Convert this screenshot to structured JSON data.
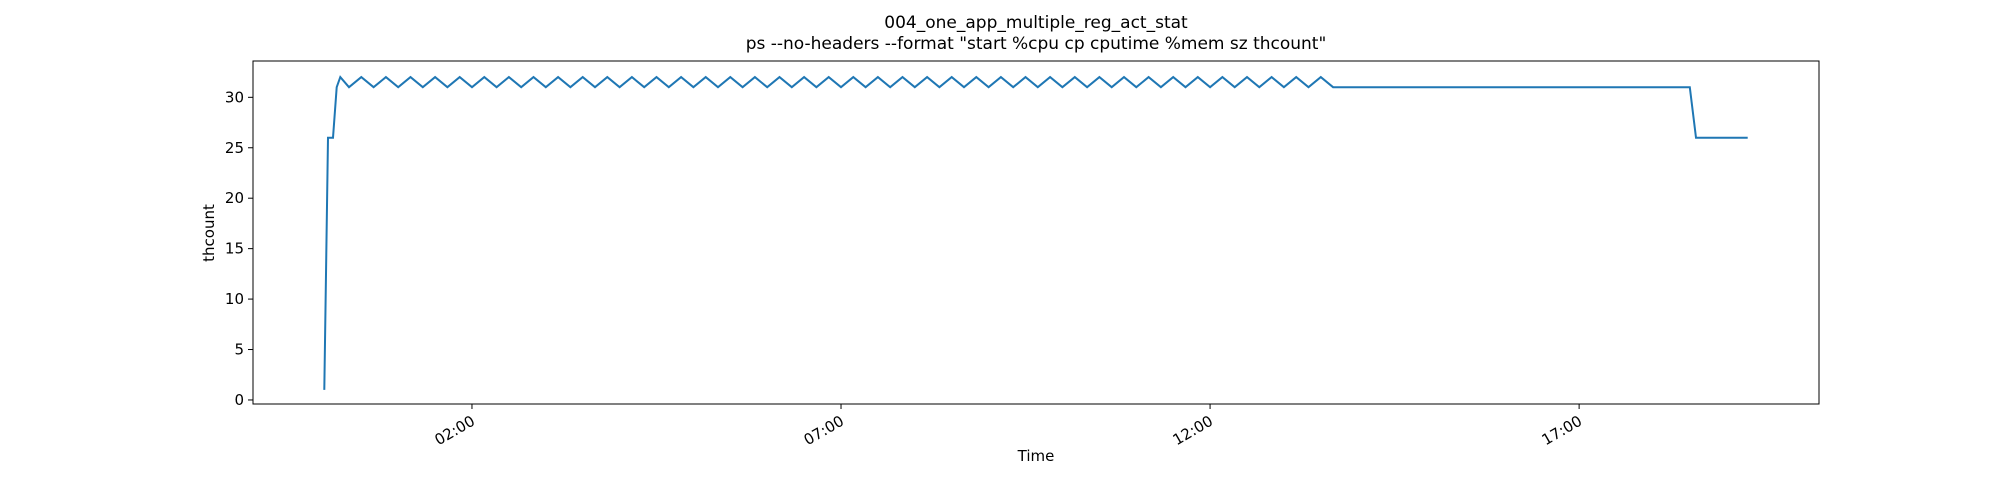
{
  "chart_data": {
    "type": "line",
    "title": "004_one_app_multiple_reg_act_stat",
    "subtitle": "ps --no-headers --format \"start %cpu cp cputime %mem sz thcount\"",
    "xlabel": "Time",
    "ylabel": "thcount",
    "color": "#1f77b4",
    "x": [
      "00:00",
      "00:03",
      "00:07",
      "00:10",
      "00:13",
      "00:20",
      "00:30",
      "00:40",
      "00:50",
      "01:00",
      "01:10",
      "01:20",
      "01:30",
      "01:40",
      "01:50",
      "02:00",
      "02:10",
      "02:20",
      "02:30",
      "02:40",
      "02:50",
      "03:00",
      "03:10",
      "03:20",
      "03:30",
      "03:40",
      "03:50",
      "04:00",
      "04:10",
      "04:20",
      "04:30",
      "04:40",
      "04:50",
      "05:00",
      "05:10",
      "05:20",
      "05:30",
      "05:40",
      "05:50",
      "06:00",
      "06:10",
      "06:20",
      "06:30",
      "06:40",
      "06:50",
      "07:00",
      "07:10",
      "07:20",
      "07:30",
      "07:40",
      "07:50",
      "08:00",
      "08:10",
      "08:20",
      "08:30",
      "08:40",
      "08:50",
      "09:00",
      "09:10",
      "09:20",
      "09:30",
      "09:40",
      "09:50",
      "10:00",
      "10:10",
      "10:20",
      "10:30",
      "10:40",
      "10:50",
      "11:00",
      "11:10",
      "11:20",
      "11:30",
      "11:40",
      "11:50",
      "12:00",
      "12:10",
      "12:20",
      "12:30",
      "12:40",
      "12:50",
      "13:00",
      "13:10",
      "13:20",
      "13:30",
      "13:40",
      "18:30",
      "18:35",
      "19:17"
    ],
    "values": [
      1,
      26,
      26,
      31,
      32,
      31,
      32,
      31,
      32,
      31,
      32,
      31,
      32,
      31,
      32,
      31,
      32,
      31,
      32,
      31,
      32,
      31,
      32,
      31,
      32,
      31,
      32,
      31,
      32,
      31,
      32,
      31,
      32,
      31,
      32,
      31,
      32,
      31,
      32,
      31,
      32,
      31,
      32,
      31,
      32,
      31,
      32,
      31,
      32,
      31,
      32,
      31,
      32,
      31,
      32,
      31,
      32,
      31,
      32,
      31,
      32,
      31,
      32,
      31,
      32,
      31,
      32,
      31,
      32,
      31,
      32,
      31,
      32,
      31,
      32,
      31,
      32,
      31,
      32,
      31,
      32,
      31,
      32,
      31,
      32,
      31,
      31,
      26,
      26
    ],
    "xlim": [
      "23:02",
      "20:15"
    ],
    "xticks": [
      "02:00",
      "07:00",
      "12:00",
      "17:00"
    ],
    "ylim": [
      -0.4,
      33.6
    ],
    "yticks": [
      0,
      5,
      10,
      15,
      20,
      25,
      30
    ]
  }
}
